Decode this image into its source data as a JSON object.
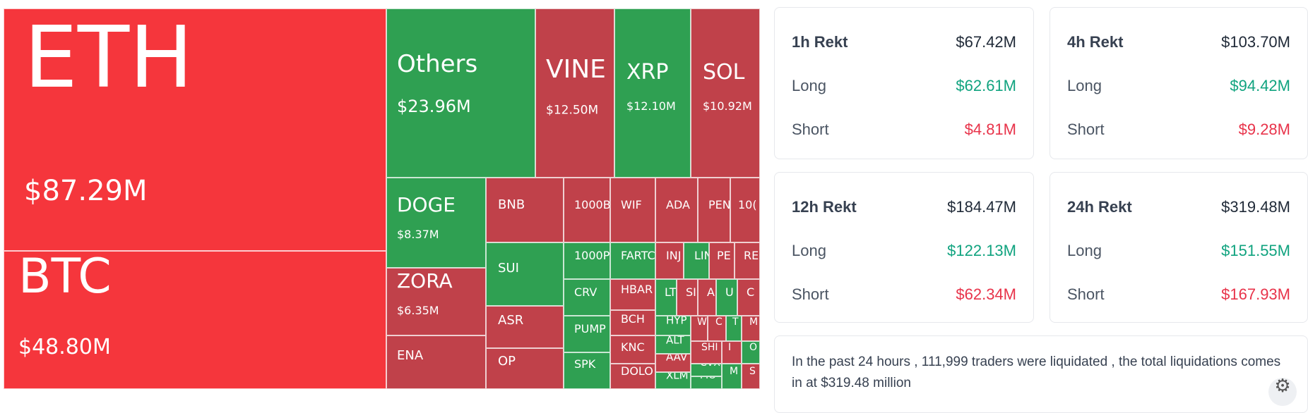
{
  "colors": {
    "liquidation_red_bright": "#f5363c",
    "liquidation_red": "#c0414a",
    "liquidation_green": "#2fa052",
    "long_text": "#10a37f",
    "short_text": "#e8334a"
  },
  "treemap": [
    {
      "symbol": "ETH",
      "value": "$87.29M",
      "color": "#f5363c"
    },
    {
      "symbol": "BTC",
      "value": "$48.80M",
      "color": "#f5363c"
    },
    {
      "symbol": "Others",
      "value": "$23.96M",
      "color": "#2fa052"
    },
    {
      "symbol": "VINE",
      "value": "$12.50M",
      "color": "#c0414a"
    },
    {
      "symbol": "XRP",
      "value": "$12.10M",
      "color": "#2fa052"
    },
    {
      "symbol": "SOL",
      "value": "$10.92M",
      "color": "#c0414a"
    },
    {
      "symbol": "DOGE",
      "value": "$8.37M",
      "color": "#2fa052"
    },
    {
      "symbol": "ZORA",
      "value": "$6.35M",
      "color": "#c0414a"
    },
    {
      "symbol": "ENA",
      "value": "",
      "color": "#c0414a"
    },
    {
      "symbol": "BNB",
      "value": "",
      "color": "#c0414a"
    },
    {
      "symbol": "SUI",
      "value": "",
      "color": "#2fa052"
    },
    {
      "symbol": "ASR",
      "value": "",
      "color": "#c0414a"
    },
    {
      "symbol": "OP",
      "value": "",
      "color": "#c0414a"
    },
    {
      "symbol": "1000B",
      "value": "",
      "color": "#c0414a"
    },
    {
      "symbol": "WIF",
      "value": "",
      "color": "#c0414a"
    },
    {
      "symbol": "ADA",
      "value": "",
      "color": "#c0414a"
    },
    {
      "symbol": "PEN",
      "value": "",
      "color": "#c0414a"
    },
    {
      "symbol": "10(",
      "value": "",
      "color": "#c0414a"
    },
    {
      "symbol": "1000P",
      "value": "",
      "color": "#2fa052"
    },
    {
      "symbol": "CRV",
      "value": "",
      "color": "#2fa052"
    },
    {
      "symbol": "PUMP",
      "value": "",
      "color": "#2fa052"
    },
    {
      "symbol": "SPK",
      "value": "",
      "color": "#2fa052"
    },
    {
      "symbol": "FARTC",
      "value": "",
      "color": "#2fa052"
    },
    {
      "symbol": "HBAR",
      "value": "",
      "color": "#c0414a"
    },
    {
      "symbol": "BCH",
      "value": "",
      "color": "#c0414a"
    },
    {
      "symbol": "KNC",
      "value": "",
      "color": "#c0414a"
    },
    {
      "symbol": "DOLO",
      "value": "",
      "color": "#c0414a"
    },
    {
      "symbol": "INJ",
      "value": "",
      "color": "#c0414a"
    },
    {
      "symbol": "LIN",
      "value": "",
      "color": "#2fa052"
    },
    {
      "symbol": "PE",
      "value": "",
      "color": "#c0414a"
    },
    {
      "symbol": "RE",
      "value": "",
      "color": "#c0414a"
    },
    {
      "symbol": "LT",
      "value": "",
      "color": "#2fa052"
    },
    {
      "symbol": "SI",
      "value": "",
      "color": "#c0414a"
    },
    {
      "symbol": "A",
      "value": "",
      "color": "#c0414a"
    },
    {
      "symbol": "U",
      "value": "",
      "color": "#2fa052"
    },
    {
      "symbol": "C",
      "value": "",
      "color": "#c0414a"
    },
    {
      "symbol": "HYP",
      "value": "",
      "color": "#2fa052"
    },
    {
      "symbol": "W",
      "value": "",
      "color": "#c0414a"
    },
    {
      "symbol": "C",
      "value": "",
      "color": "#c0414a"
    },
    {
      "symbol": "T",
      "value": "",
      "color": "#2fa052"
    },
    {
      "symbol": "M",
      "value": "",
      "color": "#c0414a"
    },
    {
      "symbol": "ALT",
      "value": "",
      "color": "#2fa052"
    },
    {
      "symbol": "SHI",
      "value": "",
      "color": "#c0414a"
    },
    {
      "symbol": "I",
      "value": "",
      "color": "#c0414a"
    },
    {
      "symbol": "O",
      "value": "",
      "color": "#2fa052"
    },
    {
      "symbol": "AAV",
      "value": "",
      "color": "#c0414a"
    },
    {
      "symbol": "CVX",
      "value": "",
      "color": "#2fa052"
    },
    {
      "symbol": "XLM",
      "value": "",
      "color": "#2fa052"
    },
    {
      "symbol": "MO",
      "value": "",
      "color": "#2fa052"
    },
    {
      "symbol": "M",
      "value": "",
      "color": "#2fa052"
    },
    {
      "symbol": "S",
      "value": "",
      "color": "#c0414a"
    }
  ],
  "rekt_cards": [
    {
      "title": "1h Rekt",
      "total": "$67.42M",
      "long_label": "Long",
      "long": "$62.61M",
      "short_label": "Short",
      "short": "$4.81M"
    },
    {
      "title": "4h Rekt",
      "total": "$103.70M",
      "long_label": "Long",
      "long": "$94.42M",
      "short_label": "Short",
      "short": "$9.28M"
    },
    {
      "title": "12h Rekt",
      "total": "$184.47M",
      "long_label": "Long",
      "long": "$122.13M",
      "short_label": "Short",
      "short": "$62.34M"
    },
    {
      "title": "24h Rekt",
      "total": "$319.48M",
      "long_label": "Long",
      "long": "$151.55M",
      "short_label": "Short",
      "short": "$167.93M"
    }
  ],
  "summary": "In the past 24 hours , 111,999 traders were liquidated , the total liquidations comes in at $319.48 million",
  "icons": {
    "settings": "gear-icon"
  }
}
